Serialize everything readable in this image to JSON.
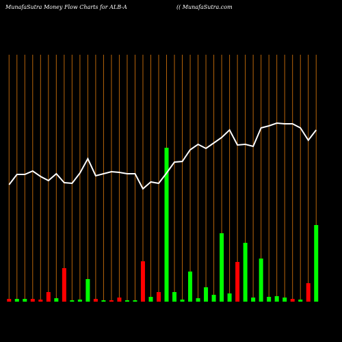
{
  "chart_data": {
    "type": "bar",
    "title": "MunafaSutra  Money Flow  Charts for ALB-A",
    "subtitle": "(( MunafaSutra.com",
    "values": [
      4,
      4,
      4,
      4,
      3,
      14,
      5,
      49,
      2,
      3,
      33,
      4,
      2,
      2,
      6,
      2,
      2,
      59,
      7,
      14,
      225,
      14,
      3,
      44,
      5,
      21,
      10,
      100,
      12,
      58,
      86,
      6,
      63,
      7,
      8,
      6,
      4,
      3,
      27,
      112
    ],
    "colors": [
      "#ff0000",
      "#00ff00",
      "#00ff00",
      "#ff0000",
      "#ff0000",
      "#ff0000",
      "#00ff00",
      "#ff0000",
      "#00ff00",
      "#00ff00",
      "#00ff00",
      "#ff0000",
      "#00ff00",
      "#ff0000",
      "#ff0000",
      "#00ff00",
      "#00ff00",
      "#ff0000",
      "#00ff00",
      "#ff0000",
      "#00ff00",
      "#00ff00",
      "#00ff00",
      "#00ff00",
      "#00ff00",
      "#00ff00",
      "#00ff00",
      "#00ff00",
      "#00ff00",
      "#ff0000",
      "#00ff00",
      "#00ff00",
      "#00ff00",
      "#00ff00",
      "#00ff00",
      "#00ff00",
      "#ff0000",
      "#00ff00",
      "#ff0000",
      "#00ff00"
    ],
    "line_values": [
      171,
      186,
      186,
      191,
      183,
      177,
      187,
      174,
      173,
      188,
      209,
      184,
      187,
      190,
      189,
      187,
      187,
      165,
      175,
      173,
      188,
      204,
      205,
      222,
      230,
      224,
      232,
      240,
      251,
      229,
      230,
      227,
      254,
      257,
      261,
      260,
      260,
      254,
      236,
      251
    ],
    "line_color": "#ffffff",
    "grid_color": "#b8650a",
    "ylim": [
      0,
      361
    ]
  }
}
